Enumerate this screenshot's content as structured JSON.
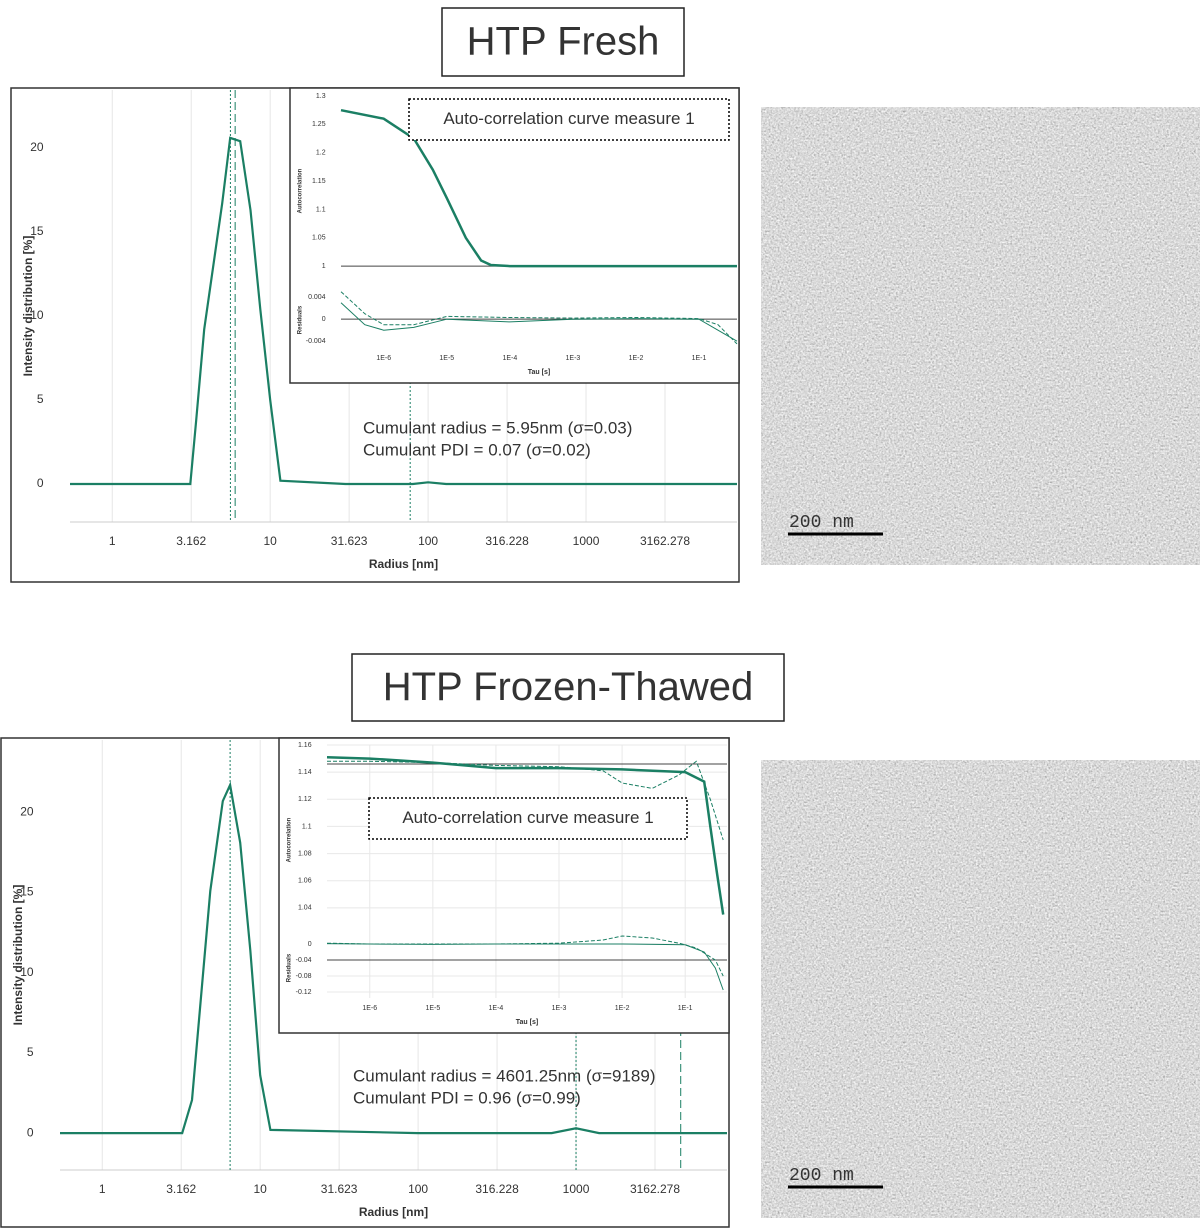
{
  "chart_data": [
    {
      "type": "line",
      "title": "HTP Fresh",
      "xlabel": "Radius [nm]",
      "ylabel": "Intensity distribution [%]",
      "xlog": true,
      "grid": true,
      "xlim": [
        0.54,
        9036
      ],
      "ylim": [
        -2.26,
        23.45
      ],
      "xticks": [
        1,
        3.162,
        10,
        31.623,
        100,
        316.228,
        1000,
        3162.278
      ],
      "yticks": [
        0,
        5,
        10,
        15,
        20
      ],
      "series": [
        {
          "color": "#1b7f64",
          "x": [
            0.54,
            3.12,
            3.4,
            3.82,
            4.97,
            5.58,
            6.46,
            7.5,
            8.66,
            10,
            11.6,
            30,
            80,
            100,
            130,
            1000,
            9036
          ],
          "values": [
            0,
            0,
            3.8,
            9.2,
            16.7,
            20.6,
            20.4,
            16.3,
            10.4,
            5.0,
            0.2,
            0,
            0,
            0.1,
            0,
            0,
            0
          ]
        }
      ],
      "vlines": [
        {
          "value": 5.6,
          "dash": "2,2"
        },
        {
          "value": 6.0,
          "dash": "8,4"
        },
        {
          "value": 77,
          "dash": "2,2"
        }
      ],
      "annotations": [
        "Cumulant  radius = 5.95nm  (σ=0.03)",
        "Cumulant  PDI = 0.07  (σ=0.02)"
      ]
    },
    {
      "type": "line",
      "title": "Auto-correlation  curve measure  1",
      "xlabel": "Tau [s]",
      "ylabel": "Autocorrelation",
      "xlog": true,
      "xlim": [
        2.1e-07,
        0.4
      ],
      "ylim": [
        0.965,
        1.3
      ],
      "xticks": [
        {
          "value": 1e-06,
          "label": "1E-6"
        },
        {
          "value": 1e-05,
          "label": "1E-5"
        },
        {
          "value": 0.0001,
          "label": "1E-4"
        },
        {
          "value": 0.001,
          "label": "1E-3"
        },
        {
          "value": 0.01,
          "label": "1E-2"
        },
        {
          "value": 0.1,
          "label": "1E-1"
        }
      ],
      "yticks": [
        1,
        1.05,
        1.1,
        1.15,
        1.2,
        1.25,
        1.3
      ],
      "hlines": [
        1
      ],
      "series": [
        {
          "color": "#1b7f64",
          "x": [
            2.1e-07,
            1e-06,
            3e-06,
            6e-06,
            1e-05,
            2e-05,
            3.5e-05,
            5e-05,
            0.0001,
            0.001,
            0.1,
            0.4
          ],
          "values": [
            1.275,
            1.26,
            1.225,
            1.17,
            1.12,
            1.05,
            1.01,
            1.002,
            1.0,
            1.0,
            1.0,
            1.0
          ]
        }
      ],
      "residuals": {
        "ylabel": "Residuals",
        "ylim": [
          -0.0056,
          0.0053
        ],
        "yticks": [
          0.004,
          0,
          -0.004
        ],
        "hlines": [
          0
        ],
        "series": [
          {
            "color": "#1b7f64",
            "x": [
              2.1e-07,
              5e-07,
              1e-06,
              3e-06,
              1e-05,
              0.0001,
              0.001,
              0.01,
              0.1,
              0.2,
              0.4
            ],
            "values": [
              0.003,
              -0.001,
              -0.002,
              -0.0015,
              0,
              -0.0005,
              0,
              0.0001,
              0,
              -0.002,
              -0.004
            ]
          },
          {
            "color": "#1b7f64",
            "dash": true,
            "x": [
              2.1e-07,
              5e-07,
              1e-06,
              3e-06,
              1e-05,
              0.0001,
              0.001,
              0.01,
              0.1,
              0.2,
              0.4
            ],
            "values": [
              0.005,
              0.001,
              -0.001,
              -0.001,
              0.0005,
              0.0003,
              0.0002,
              0.0003,
              0.0001,
              -0.001,
              -0.0045
            ]
          }
        ]
      }
    },
    {
      "type": "line",
      "title": "HTP Frozen-Thawed",
      "xlabel": "Radius [nm]",
      "ylabel": "Intensity distribution [%]",
      "xlog": true,
      "grid": true,
      "xlim": [
        0.54,
        9036
      ],
      "ylim": [
        -2.3,
        24.5
      ],
      "xticks": [
        1,
        3.162,
        10,
        31.623,
        100,
        316.228,
        1000,
        3162.278
      ],
      "yticks": [
        0,
        5,
        10,
        15,
        20
      ],
      "series": [
        {
          "color": "#1b7f64",
          "x": [
            0.54,
            3.21,
            3.7,
            4.83,
            5.8,
            6.45,
            7.47,
            8.66,
            10,
            11.6,
            100,
            700,
            1000,
            1400,
            9036
          ],
          "values": [
            0,
            0,
            2.06,
            15.1,
            20.7,
            21.7,
            18.1,
            11.4,
            3.6,
            0.2,
            0,
            0,
            0.3,
            0,
            0
          ]
        }
      ],
      "vlines": [
        {
          "value": 6.45,
          "dash": "2,2"
        },
        {
          "value": 1000,
          "dash": "2,2"
        },
        {
          "value": 4601.25,
          "dash": "8,4"
        }
      ],
      "annotations": [
        "Cumulant  radius = 4601.25nm  (σ=9189)",
        "Cumulant  PDI = 0.96  (σ=0.99)"
      ]
    },
    {
      "type": "line",
      "title": "Auto-correlation  curve measure  1",
      "xlabel": "Tau [s]",
      "ylabel": "Autocorrelation",
      "xlog": true,
      "grid": true,
      "xlim": [
        2.1e-07,
        0.46
      ],
      "ylim": [
        1.02,
        1.16
      ],
      "xticks": [
        {
          "value": 1e-06,
          "label": "1E-6"
        },
        {
          "value": 1e-05,
          "label": "1E-5"
        },
        {
          "value": 0.0001,
          "label": "1E-4"
        },
        {
          "value": 0.001,
          "label": "1E-3"
        },
        {
          "value": 0.01,
          "label": "1E-2"
        },
        {
          "value": 0.1,
          "label": "1E-1"
        }
      ],
      "yticks": [
        1.04,
        1.06,
        1.08,
        1.1,
        1.12,
        1.14,
        1.16
      ],
      "hlines": [
        1.146
      ],
      "series": [
        {
          "color": "#1b7f64",
          "x": [
            2.1e-07,
            1e-06,
            1e-05,
            0.0001,
            0.001,
            0.01,
            0.1,
            0.2,
            0.25,
            0.32,
            0.4
          ],
          "values": [
            1.151,
            1.15,
            1.147,
            1.143,
            1.143,
            1.142,
            1.14,
            1.133,
            1.1,
            1.065,
            1.035
          ]
        },
        {
          "color": "#1b7f64",
          "dash": true,
          "x": [
            2.1e-07,
            1e-06,
            1e-05,
            0.0001,
            0.001,
            0.005,
            0.01,
            0.03,
            0.08,
            0.15,
            0.25,
            0.4
          ],
          "values": [
            1.148,
            1.148,
            1.147,
            1.145,
            1.144,
            1.141,
            1.132,
            1.128,
            1.138,
            1.148,
            1.12,
            1.09
          ]
        }
      ],
      "residuals": {
        "ylabel": "Residuals",
        "ylim": [
          -0.135,
          0.015
        ],
        "yticks": [
          0,
          -0.04,
          -0.08,
          -0.12
        ],
        "hlines": [
          -0.04
        ],
        "series": [
          {
            "color": "#1b7f64",
            "x": [
              2.1e-07,
              1e-06,
              1e-05,
              0.0001,
              0.001,
              0.01,
              0.1,
              0.2,
              0.3,
              0.4
            ],
            "values": [
              0.001,
              0,
              -0.001,
              0,
              0,
              0,
              -0.002,
              -0.02,
              -0.06,
              -0.115
            ]
          },
          {
            "color": "#1b7f64",
            "dash": true,
            "x": [
              2.1e-07,
              1e-06,
              1e-05,
              0.0001,
              0.001,
              0.005,
              0.01,
              0.03,
              0.08,
              0.15,
              0.3,
              0.4
            ],
            "values": [
              0.002,
              0,
              0,
              0,
              0.002,
              0.01,
              0.02,
              0.015,
              0.002,
              -0.01,
              -0.04,
              -0.08
            ]
          }
        ]
      }
    }
  ],
  "images": [
    {
      "scale_label": "200 nm"
    },
    {
      "scale_label": "200 nm"
    }
  ]
}
